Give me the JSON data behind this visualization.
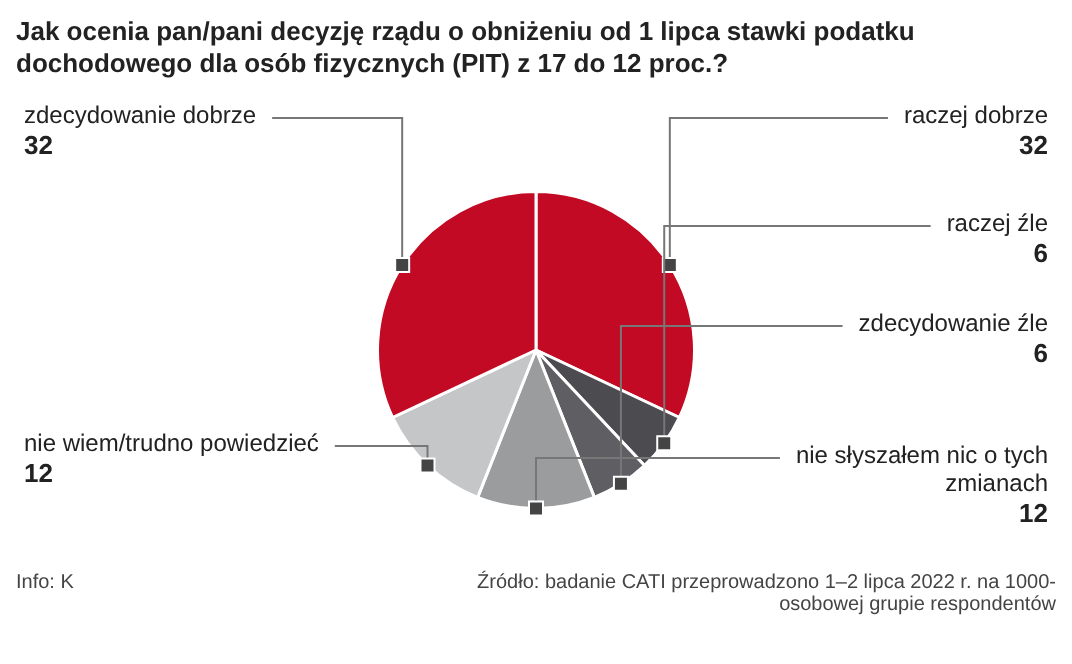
{
  "chart_data": {
    "type": "pie",
    "title": "Jak ocenia pan/pani decyzję rządu o obniżeniu od 1 lipca stawki podatku dochodowego dla osób fizycznych (PIT) z 17 do 12 proc.?",
    "categories": [
      "raczej dobrze",
      "raczej źle",
      "zdecydowanie źle",
      "nie słyszałem nic o tych zmianach",
      "nie wiem/trudno powiedzieć",
      "zdecydowanie dobrze"
    ],
    "values": [
      32,
      6,
      6,
      12,
      12,
      32
    ],
    "colors": [
      "#c20a24",
      "#4b4b50",
      "#5e5e63",
      "#9b9c9e",
      "#c4c6c8",
      "#c20a24"
    ],
    "data_labels": true,
    "legend": false,
    "annotations": [
      "Info: K",
      "Źródło: badanie CATI przeprowadzono 1–2 lipca 2022 r. na 1000-osobowej grupie respondentów"
    ]
  }
}
